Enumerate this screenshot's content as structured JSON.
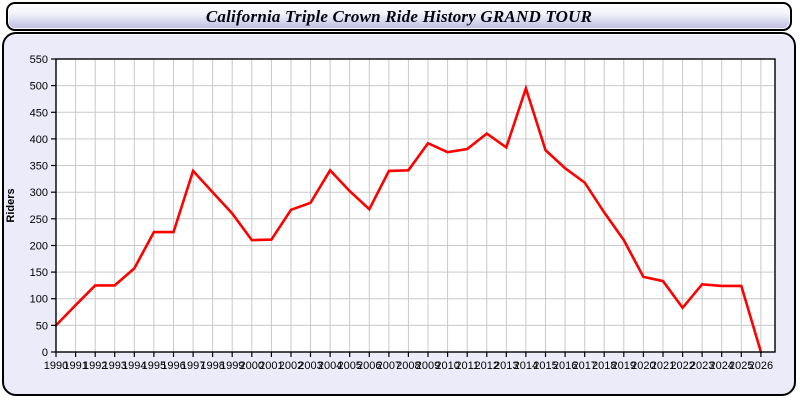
{
  "header": {
    "title": "California Triple Crown Ride History GRAND TOUR"
  },
  "colors": {
    "page_background": "#FFFFFF",
    "panel_background": "#EBEBF9",
    "plot_background": "#FFFFFF",
    "grid": "#C9C9C9",
    "axis": "#000000",
    "series_line": "#FF0000",
    "title_text": "#050510"
  },
  "chart_data": {
    "type": "line",
    "title": "California Triple Crown Ride History GRAND TOUR",
    "xlabel": "",
    "ylabel": "Riders",
    "ylim": [
      0,
      550
    ],
    "ytick_step": 50,
    "grid": true,
    "legend_position": "none",
    "x": [
      1990,
      1991,
      1992,
      1993,
      1994,
      1995,
      1996,
      1997,
      1998,
      1999,
      2000,
      2001,
      2002,
      2003,
      2004,
      2005,
      2006,
      2007,
      2008,
      2009,
      2010,
      2011,
      2012,
      2013,
      2014,
      2015,
      2016,
      2017,
      2018,
      2019,
      2020,
      2021,
      2022,
      2023,
      2024,
      2025,
      2026
    ],
    "series": [
      {
        "name": "Riders",
        "color": "#FF0000",
        "values": [
          50,
          88,
          125,
          125,
          157,
          225,
          225,
          340,
          300,
          260,
          210,
          211,
          267,
          280,
          341,
          302,
          268,
          340,
          341,
          392,
          375,
          381,
          410,
          384,
          495,
          379,
          345,
          318,
          262,
          210,
          141,
          133,
          83,
          127,
          124,
          124,
          0
        ]
      }
    ]
  }
}
